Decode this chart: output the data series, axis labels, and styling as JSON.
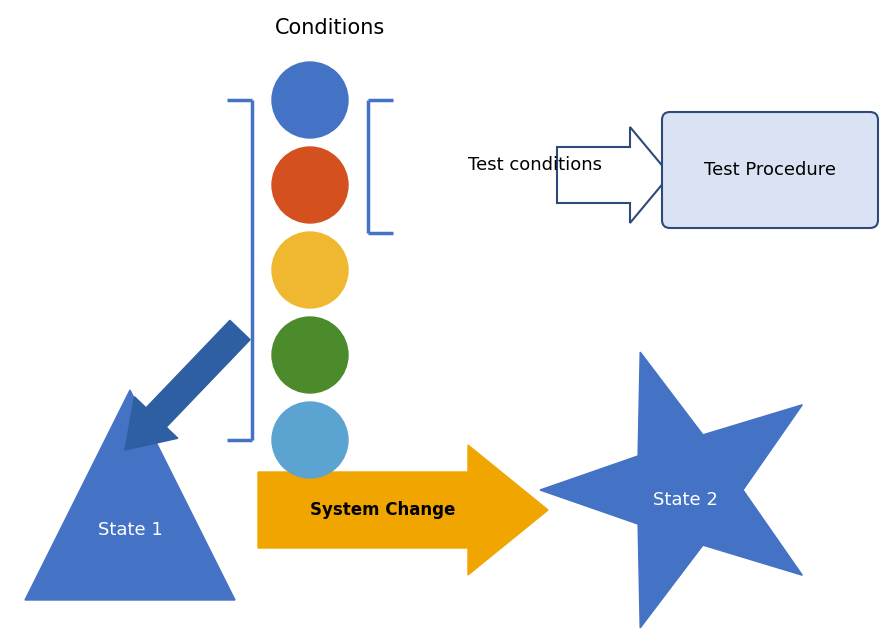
{
  "title": "Conditions",
  "title_fontsize": 15,
  "background_color": "#ffffff",
  "blue_color": "#4472C4",
  "state_blue": "#4472C4",
  "state1_label": "State 1",
  "state2_label": "State 2",
  "system_change_label": "System Change",
  "test_conditions_label": "Test conditions",
  "test_procedure_label": "Test Procedure",
  "traffic_colors": [
    "#4472C4",
    "#D4511F",
    "#F0B830",
    "#4B8B2B",
    "#5BA3D0"
  ],
  "arrow_color_blue": "#2E5FA3",
  "arrow_color_yellow": "#F0A500",
  "bracket_color": "#4472C4",
  "box_face": "#DAE3F3",
  "box_edge": "#2E4A7A"
}
